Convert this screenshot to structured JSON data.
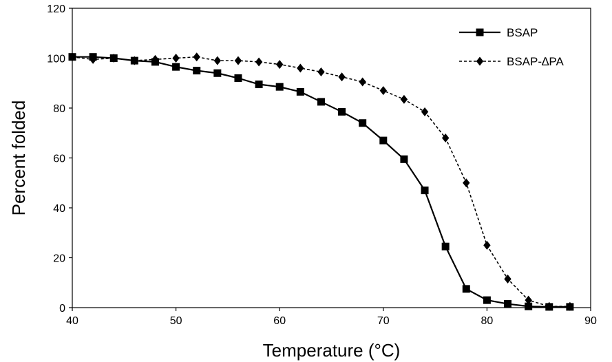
{
  "chart_data": {
    "type": "line",
    "title": "",
    "xlabel": "Temperature (°C)",
    "ylabel": "Percent folded",
    "xlim": [
      40,
      90
    ],
    "ylim": [
      0,
      120
    ],
    "xticks": [
      "40",
      "50",
      "60",
      "70",
      "80",
      "90"
    ],
    "yticks": [
      "0",
      "20",
      "40",
      "60",
      "80",
      "100",
      "120"
    ],
    "grid": false,
    "legend_position": "top-right",
    "series": [
      {
        "name": "BSAP",
        "line_style": "solid",
        "marker": "square",
        "color": "#000000",
        "x": [
          40,
          42,
          44,
          46,
          48,
          50,
          52,
          54,
          56,
          58,
          60,
          62,
          64,
          66,
          68,
          70,
          72,
          74,
          76,
          78,
          80,
          82,
          84,
          86,
          88
        ],
        "y": [
          100.5,
          100.5,
          100,
          99,
          98.5,
          96.5,
          95,
          94,
          92,
          89.5,
          88.5,
          86.5,
          82.5,
          78.5,
          74,
          67,
          59.5,
          47,
          24.5,
          7.5,
          3,
          1.5,
          0.5,
          0.3,
          0.3
        ]
      },
      {
        "name": "BSAP-∆PA",
        "line_style": "dashed",
        "marker": "diamond",
        "color": "#000000",
        "x": [
          40,
          42,
          44,
          46,
          48,
          50,
          52,
          54,
          56,
          58,
          60,
          62,
          64,
          66,
          68,
          70,
          72,
          74,
          76,
          78,
          80,
          82,
          84,
          86,
          88
        ],
        "y": [
          100.5,
          99.5,
          100,
          99,
          99.5,
          100,
          100.5,
          99,
          99,
          98.5,
          97.5,
          96,
          94.5,
          92.5,
          90.5,
          87,
          83.5,
          78.5,
          68,
          50,
          25,
          11.5,
          3,
          0.5,
          0.5
        ]
      }
    ]
  }
}
